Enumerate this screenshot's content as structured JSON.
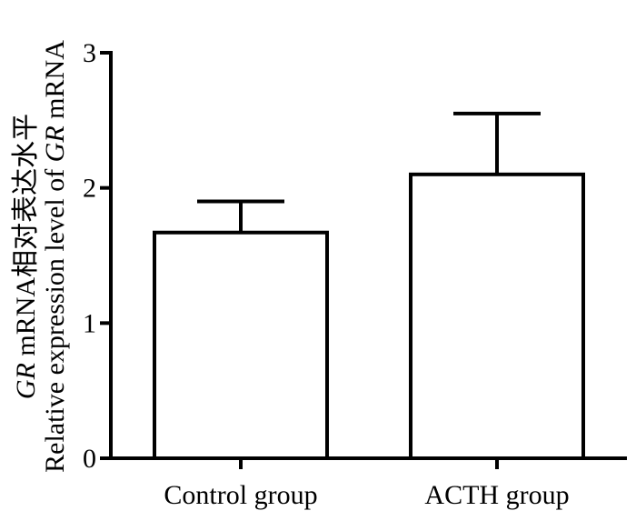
{
  "chart_data": {
    "type": "bar",
    "categories": [
      "Control group",
      "ACTH group"
    ],
    "values": [
      1.67,
      2.1
    ],
    "errors": [
      0.23,
      0.45
    ],
    "ylim": [
      0,
      3
    ],
    "yticks": [
      "0",
      "1",
      "2",
      "3"
    ],
    "ylabel_line1_italic": "GR",
    "ylabel_line1_rest": " mRNA相对表达水平",
    "ylabel_line2_prefix": "Relative expression level of ",
    "ylabel_line2_italic": "GR",
    "ylabel_line2_suffix": " mRNA",
    "xlabel": "",
    "title": "",
    "grid": false,
    "colors": {
      "bar_fill": "#ffffff",
      "stroke": "#000000"
    }
  }
}
